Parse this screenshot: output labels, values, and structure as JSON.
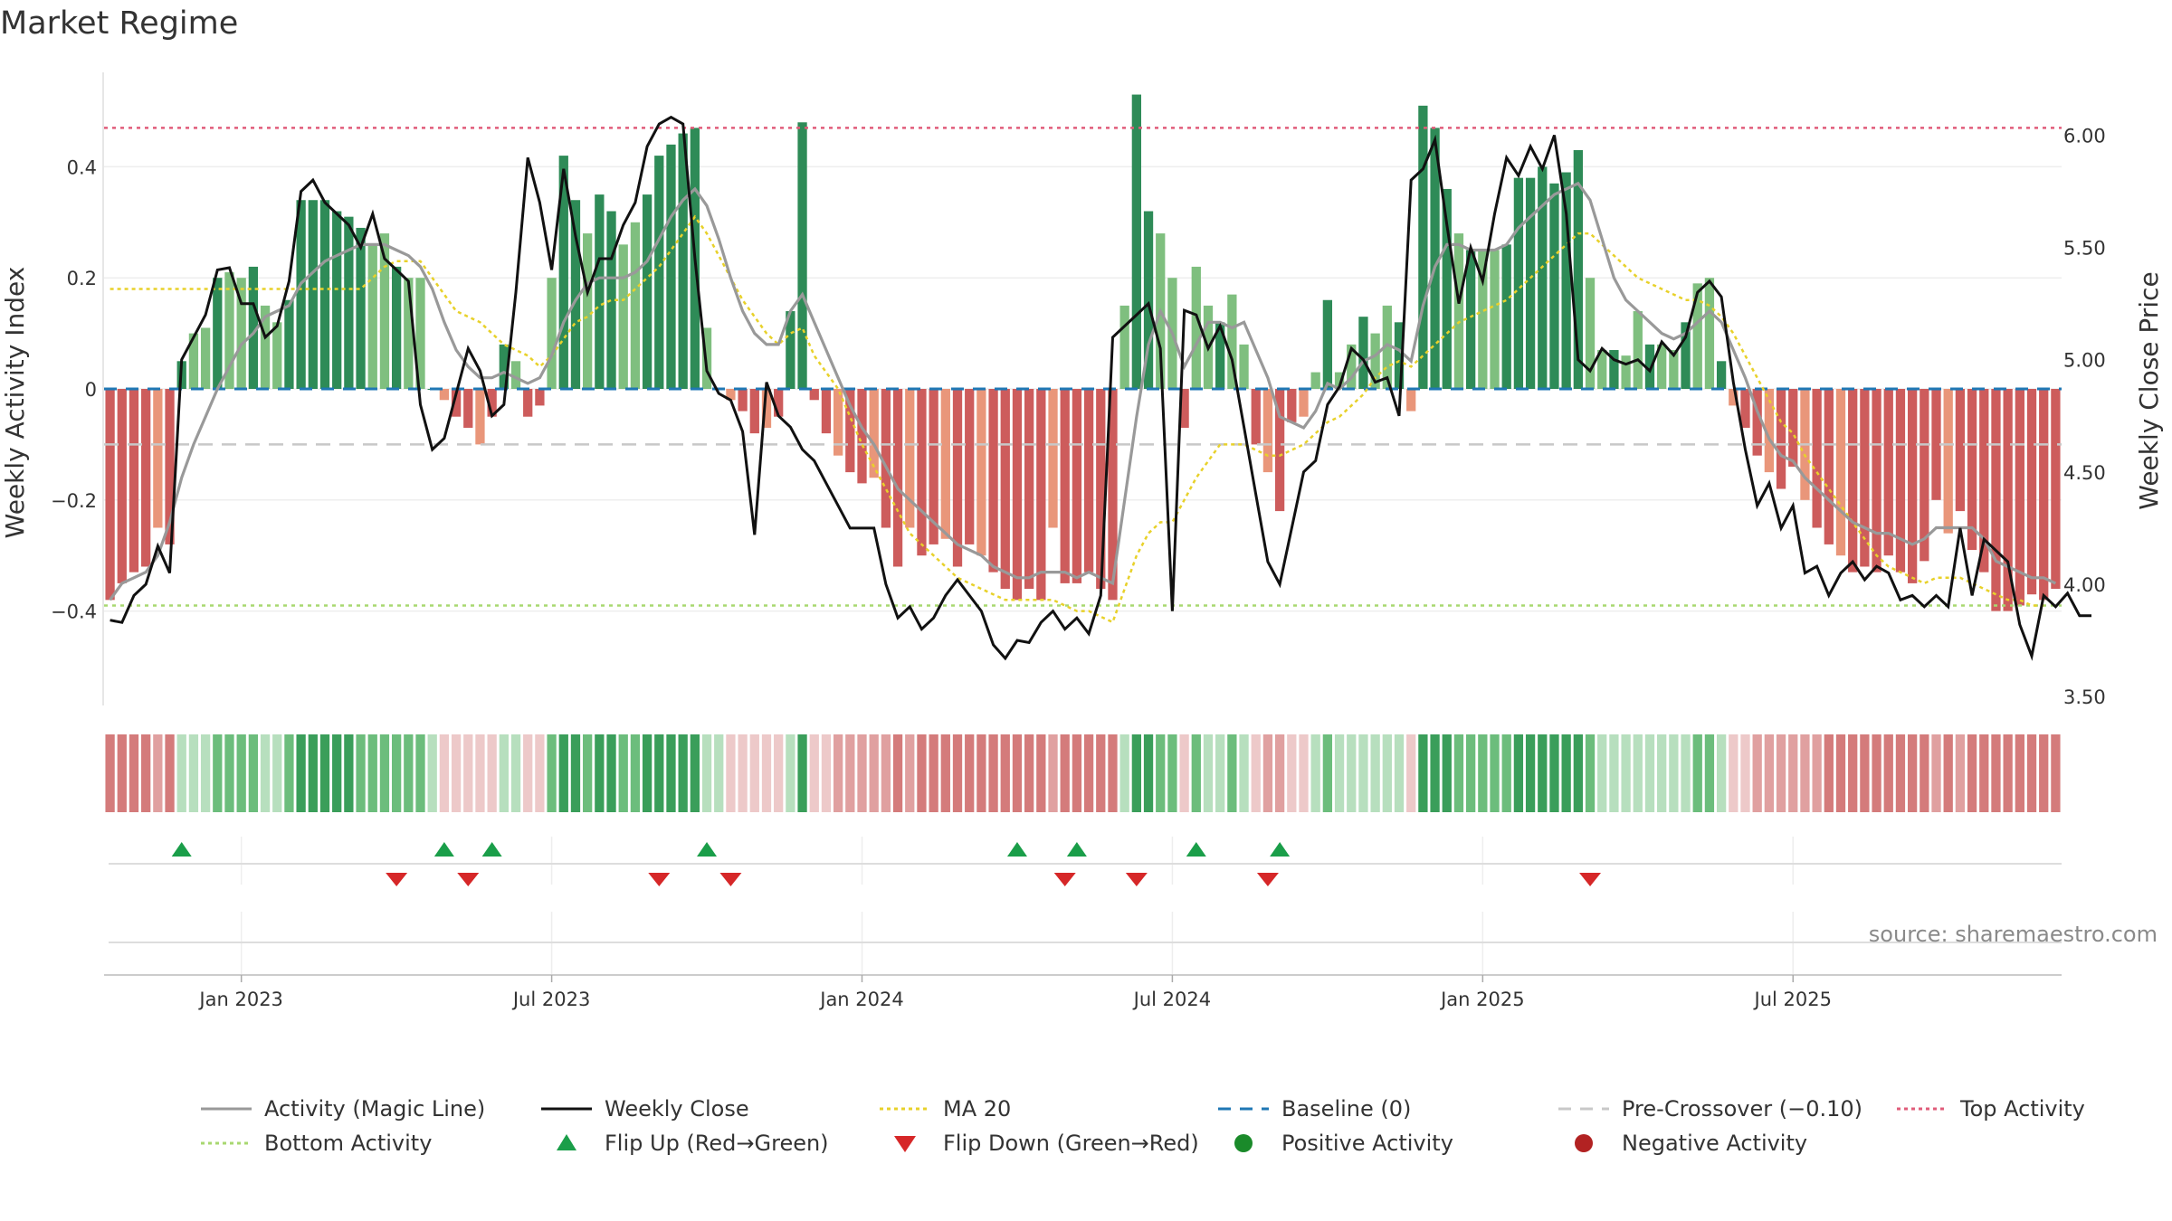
{
  "title": "Market Regime",
  "source": "source: sharemaestro.com",
  "colors": {
    "pos_strong": "#2e8b57",
    "pos_light": "#7fbf7f",
    "neg_strong": "#cd5c5c",
    "neg_light": "#e9967a",
    "magic_line": "#999999",
    "close": "#111111",
    "ma20": "#e8d12a",
    "baseline": "#1f77b4",
    "precross": "#c8c8c8",
    "top": "#e05c7a",
    "bottom": "#a8d870",
    "flip_up": "#1a9e49",
    "flip_down": "#d62728"
  },
  "chart_data": {
    "type": "bar",
    "ylabel_left": "Weekly Activity Index",
    "ylabel_right": "Weekly Close Price",
    "left_ticks": [
      {
        "v": 0.4,
        "label": "0.4"
      },
      {
        "v": 0.2,
        "label": "0.2"
      },
      {
        "v": 0,
        "label": "0"
      },
      {
        "v": -0.2,
        "label": "−0.2"
      },
      {
        "v": -0.4,
        "label": "−0.4"
      }
    ],
    "right_ticks": [
      {
        "v": 6.0,
        "label": "6.00"
      },
      {
        "v": 5.5,
        "label": "5.50"
      },
      {
        "v": 5.0,
        "label": "5.00"
      },
      {
        "v": 4.5,
        "label": "4.50"
      },
      {
        "v": 4.0,
        "label": "4.00"
      },
      {
        "v": 3.5,
        "label": "3.50"
      }
    ],
    "left_range": [
      -0.57,
      0.57
    ],
    "right_range": [
      3.46,
      6.28
    ],
    "x_ticks": [
      "Jan 2023",
      "Jul 2023",
      "Jan 2024",
      "Jul 2024",
      "Jan 2025",
      "Jul 2025"
    ],
    "x_tick_weeks": [
      11,
      37,
      63,
      89,
      115,
      141
    ],
    "top_activity": 0.47,
    "bottom_activity": -0.39,
    "baseline": 0,
    "pre_crossover": -0.1,
    "activity": [
      -0.38,
      -0.35,
      -0.33,
      -0.32,
      -0.25,
      -0.28,
      0.05,
      0.1,
      0.11,
      0.2,
      0.21,
      0.2,
      0.22,
      0.15,
      0.12,
      0.16,
      0.34,
      0.34,
      0.34,
      0.32,
      0.31,
      0.29,
      0.26,
      0.28,
      0.22,
      0.2,
      0.2,
      0,
      -0.02,
      -0.05,
      -0.07,
      -0.1,
      -0.05,
      0.08,
      0.05,
      -0.05,
      -0.03,
      0.2,
      0.42,
      0.34,
      0.28,
      0.35,
      0.32,
      0.26,
      0.3,
      0.35,
      0.42,
      0.44,
      0.46,
      0.47,
      0.11,
      0,
      -0.02,
      -0.04,
      -0.08,
      -0.07,
      -0.05,
      0.14,
      0.48,
      -0.02,
      -0.08,
      -0.12,
      -0.15,
      -0.17,
      -0.16,
      -0.25,
      -0.32,
      -0.25,
      -0.3,
      -0.28,
      -0.27,
      -0.32,
      -0.28,
      -0.3,
      -0.33,
      -0.36,
      -0.38,
      -0.36,
      -0.38,
      -0.25,
      -0.35,
      -0.35,
      -0.33,
      -0.36,
      -0.38,
      0.15,
      0.53,
      0.32,
      0.28,
      0.2,
      -0.07,
      0.22,
      0.15,
      0.12,
      0.17,
      0.08,
      -0.1,
      -0.15,
      -0.22,
      -0.06,
      -0.05,
      0.03,
      0.16,
      0.03,
      0.08,
      0.13,
      0.1,
      0.15,
      0.12,
      -0.04,
      0.51,
      0.47,
      0.36,
      0.28,
      0.25,
      0.25,
      0.25,
      0.26,
      0.38,
      0.38,
      0.4,
      0.37,
      0.39,
      0.43,
      0.2,
      0.07,
      0.07,
      0.06,
      0.14,
      0.08,
      0.08,
      0.07,
      0.12,
      0.19,
      0.2,
      0.05,
      -0.03,
      -0.07,
      -0.12,
      -0.15,
      -0.18,
      -0.14,
      -0.2,
      -0.25,
      -0.28,
      -0.3,
      -0.33,
      -0.32,
      -0.33,
      -0.3,
      -0.33,
      -0.35,
      -0.31,
      -0.2,
      -0.26,
      -0.22,
      -0.29,
      -0.33,
      -0.4,
      -0.4,
      -0.39,
      -0.37,
      -0.38,
      -0.36
    ],
    "magic_line": [
      -0.38,
      -0.35,
      -0.34,
      -0.33,
      -0.3,
      -0.24,
      -0.16,
      -0.1,
      -0.05,
      0,
      0.04,
      0.08,
      0.1,
      0.13,
      0.14,
      0.15,
      0.19,
      0.21,
      0.23,
      0.24,
      0.25,
      0.26,
      0.26,
      0.26,
      0.25,
      0.24,
      0.22,
      0.18,
      0.12,
      0.07,
      0.04,
      0.02,
      0.02,
      0.03,
      0.02,
      0.01,
      0.02,
      0.06,
      0.12,
      0.16,
      0.19,
      0.2,
      0.2,
      0.2,
      0.21,
      0.23,
      0.27,
      0.31,
      0.34,
      0.36,
      0.33,
      0.27,
      0.2,
      0.14,
      0.1,
      0.08,
      0.08,
      0.14,
      0.17,
      0.12,
      0.07,
      0.02,
      -0.03,
      -0.07,
      -0.1,
      -0.14,
      -0.18,
      -0.2,
      -0.22,
      -0.24,
      -0.26,
      -0.28,
      -0.29,
      -0.3,
      -0.32,
      -0.33,
      -0.34,
      -0.34,
      -0.33,
      -0.33,
      -0.33,
      -0.34,
      -0.33,
      -0.34,
      -0.35,
      -0.2,
      -0.05,
      0.08,
      0.14,
      0.1,
      0.04,
      0.08,
      0.12,
      0.12,
      0.11,
      0.12,
      0.07,
      0.02,
      -0.05,
      -0.06,
      -0.07,
      -0.04,
      0.01,
      0.0,
      0.02,
      0.05,
      0.06,
      0.08,
      0.07,
      0.05,
      0.15,
      0.22,
      0.26,
      0.26,
      0.25,
      0.25,
      0.25,
      0.26,
      0.29,
      0.31,
      0.33,
      0.35,
      0.36,
      0.37,
      0.34,
      0.27,
      0.2,
      0.16,
      0.14,
      0.12,
      0.1,
      0.09,
      0.1,
      0.12,
      0.14,
      0.12,
      0.07,
      0.02,
      -0.04,
      -0.09,
      -0.12,
      -0.13,
      -0.16,
      -0.18,
      -0.2,
      -0.22,
      -0.24,
      -0.25,
      -0.26,
      -0.26,
      -0.27,
      -0.28,
      -0.27,
      -0.25,
      -0.25,
      -0.25,
      -0.25,
      -0.27,
      -0.31,
      -0.32,
      -0.33,
      -0.34,
      -0.34,
      -0.35
    ],
    "ma20": [
      0.18,
      0.18,
      0.18,
      0.18,
      0.18,
      0.18,
      0.18,
      0.18,
      0.18,
      0.18,
      0.18,
      0.18,
      0.18,
      0.18,
      0.18,
      0.18,
      0.18,
      0.18,
      0.18,
      0.18,
      0.18,
      0.18,
      0.2,
      0.22,
      0.23,
      0.23,
      0.23,
      0.2,
      0.17,
      0.14,
      0.13,
      0.12,
      0.1,
      0.08,
      0.07,
      0.06,
      0.04,
      0.06,
      0.09,
      0.12,
      0.13,
      0.15,
      0.16,
      0.16,
      0.18,
      0.2,
      0.22,
      0.25,
      0.28,
      0.31,
      0.28,
      0.24,
      0.2,
      0.16,
      0.13,
      0.1,
      0.08,
      0.1,
      0.11,
      0.06,
      0.03,
      0,
      -0.05,
      -0.1,
      -0.14,
      -0.18,
      -0.22,
      -0.26,
      -0.28,
      -0.3,
      -0.32,
      -0.34,
      -0.35,
      -0.36,
      -0.37,
      -0.38,
      -0.38,
      -0.38,
      -0.38,
      -0.38,
      -0.39,
      -0.4,
      -0.4,
      -0.41,
      -0.42,
      -0.36,
      -0.3,
      -0.26,
      -0.24,
      -0.24,
      -0.2,
      -0.16,
      -0.13,
      -0.1,
      -0.1,
      -0.1,
      -0.11,
      -0.12,
      -0.12,
      -0.11,
      -0.1,
      -0.08,
      -0.06,
      -0.05,
      -0.03,
      -0.01,
      0.02,
      0.04,
      0.05,
      0.04,
      0.06,
      0.08,
      0.1,
      0.12,
      0.13,
      0.14,
      0.15,
      0.16,
      0.18,
      0.2,
      0.22,
      0.24,
      0.26,
      0.28,
      0.28,
      0.26,
      0.24,
      0.22,
      0.2,
      0.19,
      0.18,
      0.17,
      0.16,
      0.16,
      0.15,
      0.13,
      0.1,
      0.06,
      0.02,
      -0.02,
      -0.06,
      -0.08,
      -0.12,
      -0.15,
      -0.18,
      -0.21,
      -0.24,
      -0.27,
      -0.3,
      -0.32,
      -0.33,
      -0.34,
      -0.35,
      -0.34,
      -0.34,
      -0.34,
      -0.35,
      -0.36,
      -0.37,
      -0.38,
      -0.38,
      -0.39,
      -0.39
    ],
    "weekly_close": [
      3.84,
      3.83,
      3.95,
      4.0,
      4.17,
      4.05,
      5.0,
      5.1,
      5.2,
      5.4,
      5.41,
      5.25,
      5.25,
      5.1,
      5.15,
      5.35,
      5.75,
      5.8,
      5.7,
      5.65,
      5.6,
      5.5,
      5.65,
      5.45,
      5.4,
      5.35,
      4.8,
      4.6,
      4.65,
      4.85,
      5.05,
      4.95,
      4.75,
      4.8,
      5.3,
      5.9,
      5.7,
      5.4,
      5.85,
      5.55,
      5.3,
      5.45,
      5.45,
      5.6,
      5.7,
      5.95,
      6.05,
      6.08,
      6.05,
      5.45,
      4.95,
      4.85,
      4.82,
      4.68,
      4.22,
      4.9,
      4.75,
      4.7,
      4.6,
      4.55,
      4.45,
      4.35,
      4.25,
      4.25,
      4.25,
      4.0,
      3.85,
      3.9,
      3.8,
      3.85,
      3.95,
      4.02,
      3.95,
      3.88,
      3.73,
      3.67,
      3.75,
      3.74,
      3.83,
      3.88,
      3.8,
      3.85,
      3.78,
      3.95,
      5.1,
      5.15,
      5.2,
      5.25,
      5.05,
      3.88,
      5.22,
      5.2,
      5.05,
      5.15,
      5.0,
      4.7,
      4.4,
      4.1,
      4.0,
      4.25,
      4.5,
      4.55,
      4.8,
      4.88,
      5.05,
      5.0,
      4.9,
      4.92,
      4.75,
      5.8,
      5.85,
      5.98,
      5.6,
      5.25,
      5.5,
      5.35,
      5.65,
      5.9,
      5.82,
      5.95,
      5.85,
      6.0,
      5.65,
      5.0,
      4.95,
      5.05,
      5.0,
      4.98,
      5.0,
      4.95,
      5.08,
      5.02,
      5.1,
      5.3,
      5.35,
      5.28,
      4.9,
      4.6,
      4.35,
      4.45,
      4.25,
      4.35,
      4.05,
      4.08,
      3.95,
      4.05,
      4.1,
      4.02,
      4.08,
      4.05,
      3.93,
      3.95,
      3.9,
      3.95,
      3.9,
      4.25,
      3.95,
      4.2,
      4.15,
      4.1,
      3.82,
      3.68,
      3.95,
      3.9,
      3.96,
      3.86,
      3.86
    ],
    "flip_up_weeks": [
      6,
      28,
      32,
      50,
      76,
      81,
      91,
      98
    ],
    "flip_down_weeks": [
      24,
      30,
      46,
      52,
      80,
      86,
      97,
      124
    ]
  },
  "legend": [
    {
      "label": "Activity (Magic Line)",
      "kind": "line",
      "color": "#999999"
    },
    {
      "label": "Weekly Close",
      "kind": "line",
      "color": "#111111"
    },
    {
      "label": "MA 20",
      "kind": "dotted",
      "color": "#e8d12a"
    },
    {
      "label": "Baseline (0)",
      "kind": "dashed",
      "color": "#1f77b4"
    },
    {
      "label": "Pre-Crossover (−0.10)",
      "kind": "dashed",
      "color": "#c8c8c8"
    },
    {
      "label": "Top Activity",
      "kind": "dotted",
      "color": "#e05c7a"
    },
    {
      "label": "Bottom Activity",
      "kind": "dotted",
      "color": "#a8d870"
    },
    {
      "label": "Flip Up (Red→Green)",
      "kind": "triangle-up",
      "color": "#1a9e49"
    },
    {
      "label": "Flip Down (Green→Red)",
      "kind": "triangle-down",
      "color": "#d62728"
    },
    {
      "label": "Positive Activity",
      "kind": "dot",
      "color": "#1a8a2a"
    },
    {
      "label": "Negative Activity",
      "kind": "dot",
      "color": "#b22222"
    }
  ]
}
